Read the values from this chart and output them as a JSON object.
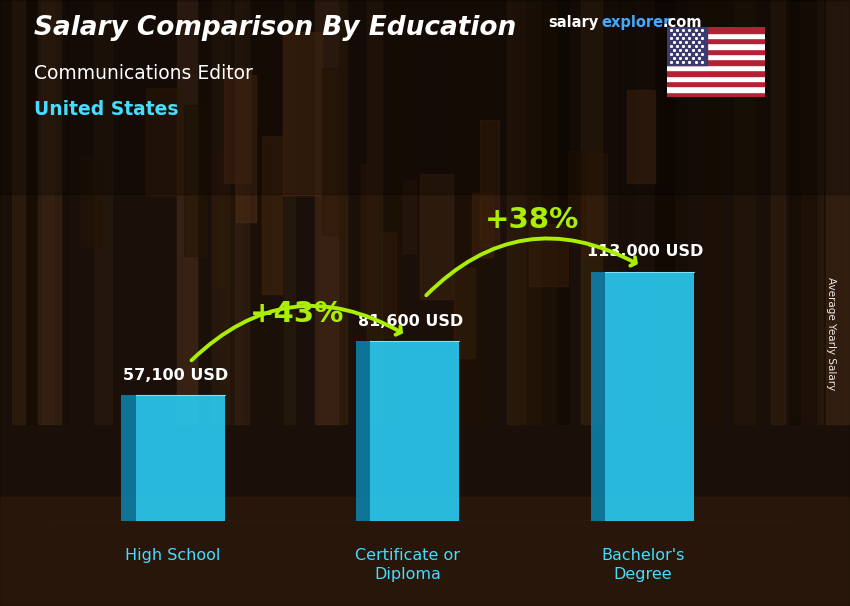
{
  "title_main": "Salary Comparison By Education",
  "title_sub": "Communications Editor",
  "title_country": "United States",
  "categories": [
    "High School",
    "Certificate or\nDiploma",
    "Bachelor's\nDegree"
  ],
  "values": [
    57100,
    81600,
    113000
  ],
  "value_labels": [
    "57,100 USD",
    "81,600 USD",
    "113,000 USD"
  ],
  "bar_face_color": "#29c8ee",
  "bar_side_color": "#0e7fa8",
  "bar_top_color": "#7de8f8",
  "pct_labels": [
    "+43%",
    "+38%"
  ],
  "pct_color": "#aaee00",
  "arrow_color": "#aaee00",
  "text_color_white": "#ffffff",
  "text_color_cyan": "#44ddff",
  "ylabel": "Average Yearly Salary",
  "bg_color": "#3d2b1a",
  "overlay_color": "#1a1208",
  "brand_salary_color": "#ffffff",
  "brand_explorer_color": "#44aaff",
  "brand_com_color": "#ffffff"
}
